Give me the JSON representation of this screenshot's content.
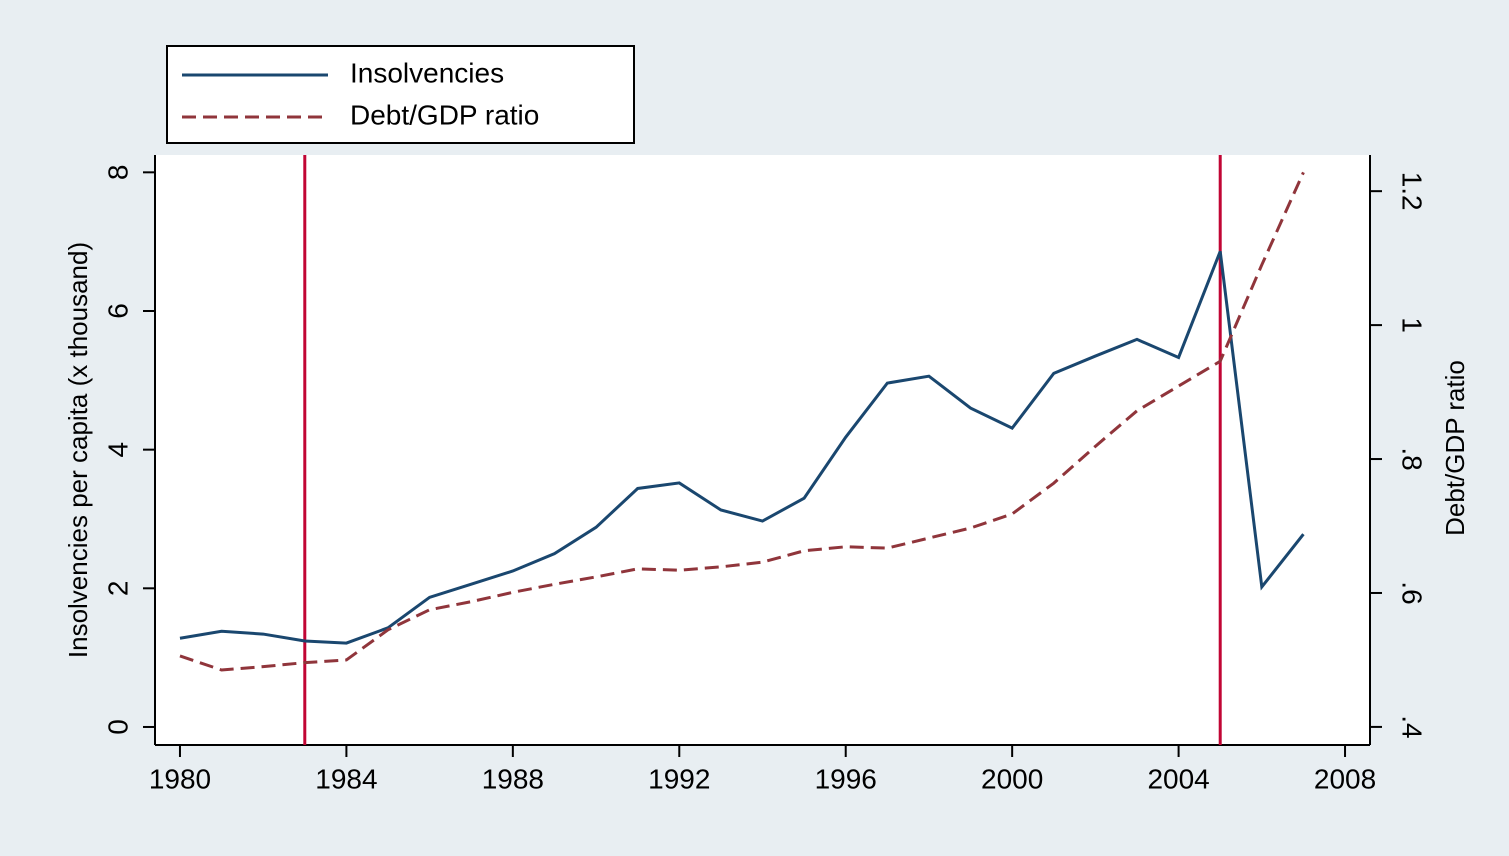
{
  "chart_data": {
    "type": "line",
    "x": [
      1980,
      1981,
      1982,
      1983,
      1984,
      1985,
      1986,
      1987,
      1988,
      1989,
      1990,
      1991,
      1992,
      1993,
      1994,
      1995,
      1996,
      1997,
      1998,
      1999,
      2000,
      2001,
      2002,
      2003,
      2004,
      2005,
      2006,
      2007
    ],
    "series": [
      {
        "name": "Insolvencies",
        "color": "#1a476f",
        "dash": "solid",
        "values": [
          1.28,
          1.38,
          1.34,
          1.24,
          1.21,
          1.43,
          1.87,
          2.06,
          2.25,
          2.5,
          2.88,
          3.44,
          3.52,
          3.13,
          2.97,
          3.3,
          4.18,
          4.96,
          5.06,
          4.6,
          4.31,
          5.1,
          5.35,
          5.59,
          5.33,
          6.86,
          2.02,
          2.78
        ]
      },
      {
        "name": "Debt/GDP ratio",
        "color": "#90353b",
        "dash": "dashed",
        "axis": "y2",
        "values": [
          0.506,
          0.485,
          0.49,
          0.496,
          0.5,
          0.545,
          0.575,
          0.587,
          0.601,
          0.613,
          0.624,
          0.636,
          0.634,
          0.639,
          0.646,
          0.663,
          0.669,
          0.667,
          0.682,
          0.697,
          0.718,
          0.764,
          0.819,
          0.872,
          0.909,
          0.946,
          1.09,
          1.228
        ]
      }
    ],
    "vlines": [
      1983,
      2005
    ],
    "vline_color": "#c10534",
    "xlim": [
      1979.4,
      2008.6
    ],
    "xticks": [
      1980,
      1984,
      1988,
      1992,
      1996,
      2000,
      2004,
      2008
    ],
    "ylim": [
      -0.26,
      8.25
    ],
    "yticks": [
      0,
      2,
      4,
      6,
      8
    ],
    "y2lim": [
      0.373,
      1.254
    ],
    "y2ticks": [
      {
        "value": 0.4,
        "label": ".4"
      },
      {
        "value": 0.6,
        "label": ".6"
      },
      {
        "value": 0.8,
        "label": ".8"
      },
      1,
      1.2
    ],
    "ylabel": "Insolvencies per capita (x thousand)",
    "y2label": "Debt/GDP ratio",
    "grid": false,
    "legend": "top"
  }
}
